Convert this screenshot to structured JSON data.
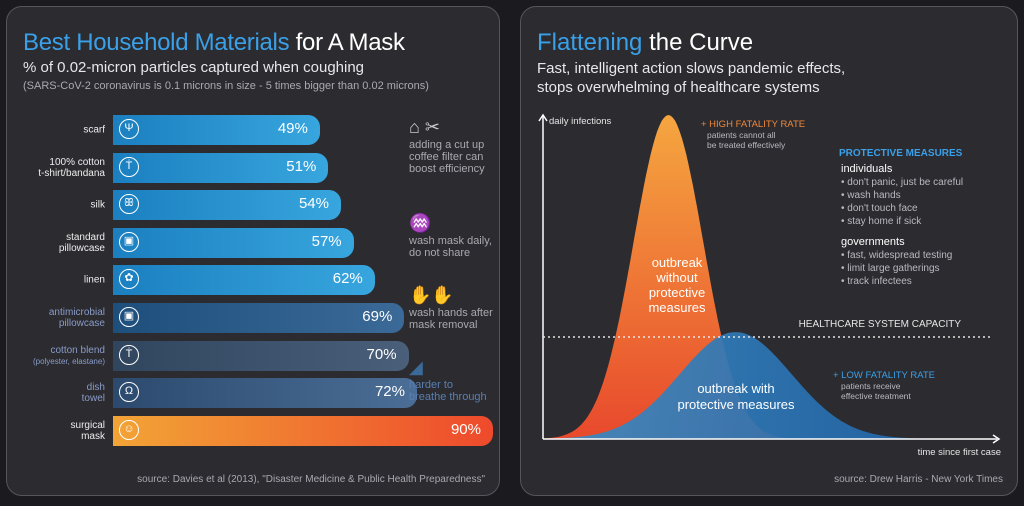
{
  "left": {
    "title_hl": "Best Household Materials",
    "title_rest": " for A Mask",
    "subtitle": "% of 0.02-micron particles captured when coughing",
    "note": "(SARS-CoV-2 coronavirus is 0.1 microns in size - 5 times bigger than 0.02 microns)",
    "source": "source: Davies et al (2013), \"Disaster Medicine & Public Health Preparedness\"",
    "tips": [
      {
        "icon": "⌂ ✂",
        "text": "adding a cut up coffee filter can boost efficiency"
      },
      {
        "icon": "♒",
        "text": "wash mask daily, do not share"
      },
      {
        "icon": "✋✋",
        "text": "wash hands after mask removal"
      },
      {
        "icon": "◢",
        "text": "harder to breathe through"
      }
    ]
  },
  "right": {
    "title_hl": "Flattening",
    "title_rest": " the Curve",
    "subtitle1": "Fast, intelligent action slows pandemic effects,",
    "subtitle2": "stops overwhelming of healthcare systems",
    "source": "source: Drew Harris - New York Times"
  },
  "chart_data": [
    {
      "type": "bar",
      "orientation": "horizontal",
      "categories": [
        "scarf",
        "100% cotton t-shirt/bandana",
        "silk",
        "standard pillowcase",
        "linen",
        "antimicrobial pillowcase",
        "cotton blend (polyester, elastane)",
        "dish towel",
        "surgical mask"
      ],
      "label_lines": [
        [
          "scarf"
        ],
        [
          "100% cotton",
          "t-shirt/bandana"
        ],
        [
          "silk"
        ],
        [
          "standard",
          "pillowcase"
        ],
        [
          "linen"
        ],
        [
          "antimicrobial",
          "pillowcase"
        ],
        [
          "cotton blend",
          "(polyester, elastane)"
        ],
        [
          "dish",
          "towel"
        ],
        [
          "surgical",
          "mask"
        ]
      ],
      "values": [
        49,
        51,
        54,
        57,
        62,
        69,
        70,
        72,
        90
      ],
      "display": [
        "49%",
        "51%",
        "54%",
        "57%",
        "62%",
        "69%",
        "70%",
        "72%",
        "90%"
      ],
      "tiers": [
        1,
        1,
        1,
        1,
        1,
        2,
        2,
        2,
        4
      ],
      "icons": [
        "Ψ",
        "Ṫ",
        "ꕥ",
        "▣",
        "✿",
        "▣",
        "Ṫ",
        "Ω",
        "☺"
      ],
      "unit": "%",
      "colors": {
        "household": "#2b95d3",
        "reduced": "#35608c",
        "mask": "#f07a33"
      }
    },
    {
      "type": "area",
      "ylabel": "daily infections",
      "xlabel": "time since first case",
      "threshold": {
        "label": "HEALTHCARE SYSTEM CAPACITY"
      },
      "series": [
        {
          "name": "outbreak without protective measures",
          "lines": [
            "outbreak",
            "without",
            "protective",
            "measures"
          ],
          "peak_time": 28,
          "peak_value": 100,
          "width": 7.8,
          "color_top": "#f5a640",
          "color_bottom": "#e8492c"
        },
        {
          "name": "outbreak with protective measures",
          "lines": [
            "outbreak with",
            "protective measures"
          ],
          "peak_time": 43,
          "peak_value": 33,
          "width": 12.5,
          "color_top": "#3a8cc4",
          "color_bottom": "#1e5fa6"
        }
      ],
      "capacity_value": 31.5,
      "annotations": {
        "high": {
          "title": "+ HIGH FATALITY RATE",
          "lines": [
            "patients cannot all",
            "be treated effectively"
          ]
        },
        "low": {
          "title": "+ LOW FATALITY RATE",
          "lines": [
            "patients receive",
            "effective treatment"
          ]
        },
        "measures": {
          "title": "PROTECTIVE MEASURES",
          "groups": [
            {
              "heading": "individuals",
              "items": [
                "• don't panic, just be careful",
                "• wash hands",
                "• don't touch face",
                "• stay home if sick"
              ]
            },
            {
              "heading": "governments",
              "items": [
                "• fast, widespread testing",
                "• limit large gatherings",
                "• track infectees"
              ]
            }
          ]
        }
      }
    }
  ]
}
